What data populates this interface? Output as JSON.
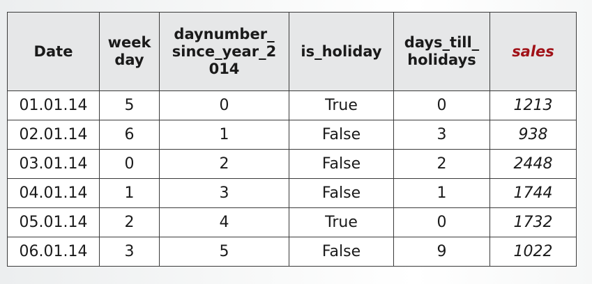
{
  "table": {
    "headers": {
      "date": "Date",
      "weekday": "week\nday",
      "daynumber": "daynumber_\nsince_year_2\n014",
      "is_holiday": "is_holiday",
      "days_till": "days_till_\nholidays",
      "sales": "sales"
    },
    "rows": [
      {
        "date": "01.01.14",
        "weekday": "5",
        "daynumber": "0",
        "is_holiday": "True",
        "days_till": "0",
        "sales": "1213"
      },
      {
        "date": "02.01.14",
        "weekday": "6",
        "daynumber": "1",
        "is_holiday": "False",
        "days_till": "3",
        "sales": "938"
      },
      {
        "date": "03.01.14",
        "weekday": "0",
        "daynumber": "2",
        "is_holiday": "False",
        "days_till": "2",
        "sales": "2448"
      },
      {
        "date": "04.01.14",
        "weekday": "1",
        "daynumber": "3",
        "is_holiday": "False",
        "days_till": "1",
        "sales": "1744"
      },
      {
        "date": "05.01.14",
        "weekday": "2",
        "daynumber": "4",
        "is_holiday": "True",
        "days_till": "0",
        "sales": "1732"
      },
      {
        "date": "06.01.14",
        "weekday": "3",
        "daynumber": "5",
        "is_holiday": "False",
        "days_till": "9",
        "sales": "1022"
      }
    ]
  },
  "colors": {
    "sales_header": "#a11218",
    "header_bg": "#e6e7e8",
    "border": "#3a3a3a"
  }
}
